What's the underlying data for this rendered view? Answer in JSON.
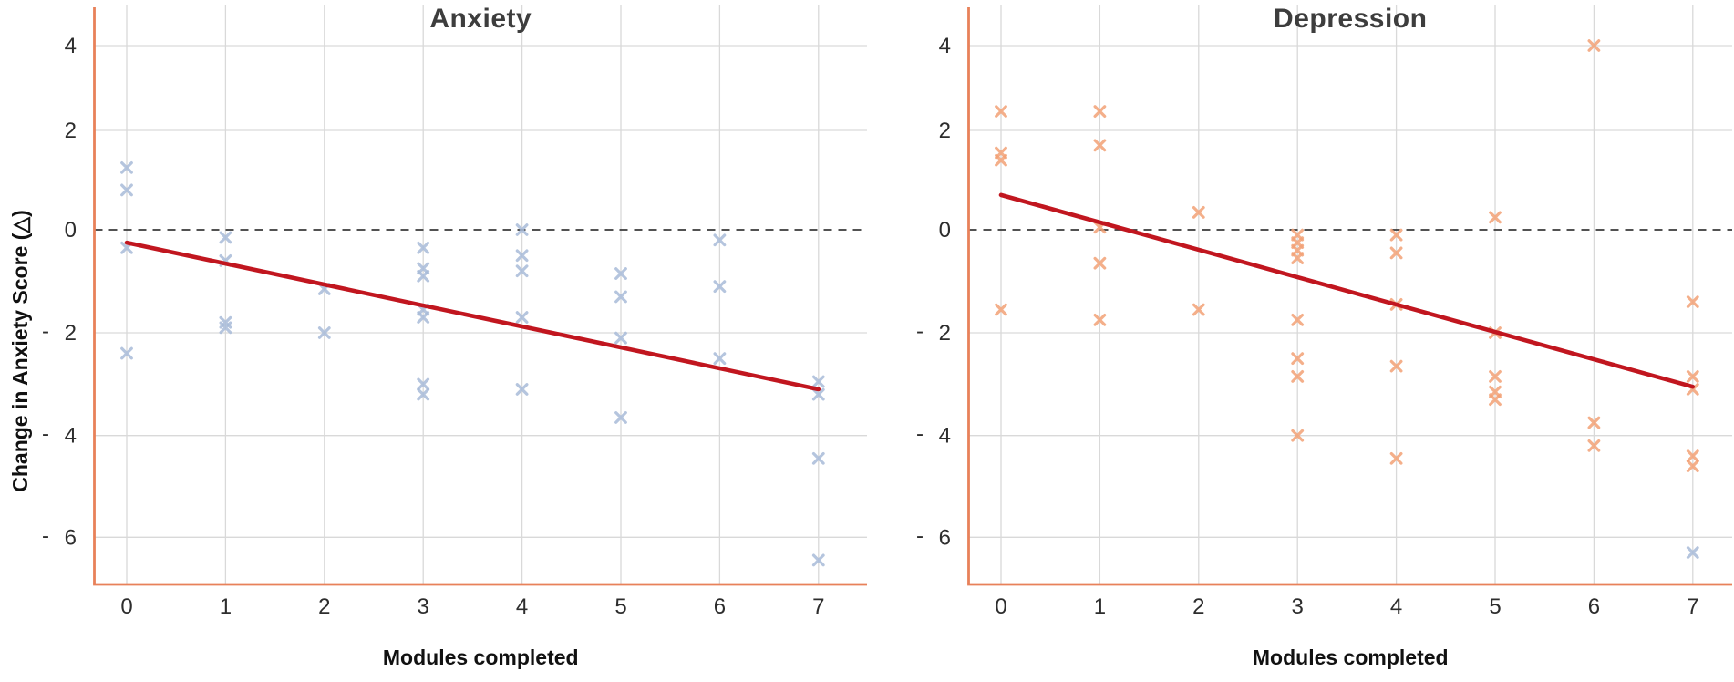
{
  "figure": {
    "kind": "dual scatter plot with trend lines",
    "background": "#ffffff"
  },
  "colors": {
    "blue_marker": "#a8bbd8",
    "orange_marker": "#f2a176",
    "trend_red": "#c1161f",
    "spine_orange": "#e8815a",
    "grid": "#d9d9d9",
    "zero_dash": "#3a3a3a",
    "tick_text": "#2d2d2d",
    "title_text": "#3d3d3d",
    "label_text": "#111111"
  },
  "chart_data": [
    {
      "type": "scatter",
      "title": "Anxiety",
      "xlabel": "Modules completed",
      "ylabel": "Change in Anxiety Score (△)",
      "xticks": [
        0,
        1,
        2,
        3,
        4,
        5,
        6,
        7
      ],
      "yticks": [
        4,
        2,
        0,
        -2,
        -4,
        -6
      ],
      "xlim": [
        -0.35,
        7.5
      ],
      "ylim": [
        -6.9,
        4.6
      ],
      "grid": true,
      "zero_line": true,
      "marker": "x",
      "series": [
        {
          "name": "anxiety-change",
          "color_key": "blue_marker",
          "points": [
            [
              0,
              1.25
            ],
            [
              0,
              0.8
            ],
            [
              0,
              -0.35
            ],
            [
              0,
              -2.4
            ],
            [
              1,
              -0.15
            ],
            [
              1,
              -0.6
            ],
            [
              1,
              -1.8
            ],
            [
              1,
              -1.9
            ],
            [
              2,
              -1.15
            ],
            [
              2,
              -2.0
            ],
            [
              3,
              -0.35
            ],
            [
              3,
              -0.75
            ],
            [
              3,
              -0.9
            ],
            [
              3,
              -1.55
            ],
            [
              3,
              -1.7
            ],
            [
              3,
              -3.0
            ],
            [
              3,
              -3.2
            ],
            [
              4,
              0.0
            ],
            [
              4,
              -0.5
            ],
            [
              4,
              -0.8
            ],
            [
              4,
              -1.7
            ],
            [
              4,
              -3.1
            ],
            [
              5,
              -0.85
            ],
            [
              5,
              -1.3
            ],
            [
              5,
              -2.1
            ],
            [
              5,
              -3.65
            ],
            [
              6,
              -0.2
            ],
            [
              6,
              -1.1
            ],
            [
              6,
              -2.5
            ],
            [
              7,
              -2.95
            ],
            [
              7,
              -3.2
            ],
            [
              7,
              -4.45
            ],
            [
              7,
              -6.45
            ]
          ]
        }
      ],
      "trend": {
        "color_key": "trend_red",
        "start": [
          0,
          -0.25
        ],
        "end": [
          7,
          -3.1
        ]
      }
    },
    {
      "type": "scatter",
      "title": "Depression",
      "xlabel": "Modules completed",
      "ylabel": "",
      "xticks": [
        0,
        1,
        2,
        3,
        4,
        5,
        6,
        7
      ],
      "yticks": [
        4,
        2,
        0,
        -2,
        -4,
        -6
      ],
      "xlim": [
        -0.35,
        7.5
      ],
      "ylim": [
        -6.9,
        4.6
      ],
      "grid": true,
      "zero_line": true,
      "marker": "x",
      "series": [
        {
          "name": "depression-change",
          "color_key": "orange_marker",
          "points": [
            [
              0,
              2.45
            ],
            [
              0,
              1.55
            ],
            [
              0,
              1.4
            ],
            [
              0,
              -1.55
            ],
            [
              1,
              2.45
            ],
            [
              1,
              1.7
            ],
            [
              1,
              0.05
            ],
            [
              1,
              -0.65
            ],
            [
              1,
              -1.75
            ],
            [
              2,
              0.35
            ],
            [
              2,
              -1.55
            ],
            [
              3,
              -0.1
            ],
            [
              3,
              -0.25
            ],
            [
              3,
              -0.4
            ],
            [
              3,
              -0.55
            ],
            [
              3,
              -1.75
            ],
            [
              3,
              -2.5
            ],
            [
              3,
              -2.85
            ],
            [
              3,
              -4.0
            ],
            [
              4,
              -0.1
            ],
            [
              4,
              -0.45
            ],
            [
              4,
              -1.45
            ],
            [
              4,
              -2.65
            ],
            [
              4,
              -4.45
            ],
            [
              5,
              0.25
            ],
            [
              5,
              -2.0
            ],
            [
              5,
              -2.85
            ],
            [
              5,
              -3.15
            ],
            [
              5,
              -3.3
            ],
            [
              6,
              4.0
            ],
            [
              6,
              -3.75
            ],
            [
              6,
              -4.2
            ],
            [
              7,
              -1.4
            ],
            [
              7,
              -2.85
            ],
            [
              7,
              -3.1
            ],
            [
              7,
              -4.4
            ],
            [
              7,
              -4.6
            ]
          ]
        },
        {
          "name": "outlier-blue",
          "color_key": "blue_marker",
          "points": [
            [
              7,
              -6.3
            ]
          ]
        }
      ],
      "trend": {
        "color_key": "trend_red",
        "start": [
          0,
          0.7
        ],
        "end": [
          7,
          -3.05
        ]
      }
    }
  ]
}
